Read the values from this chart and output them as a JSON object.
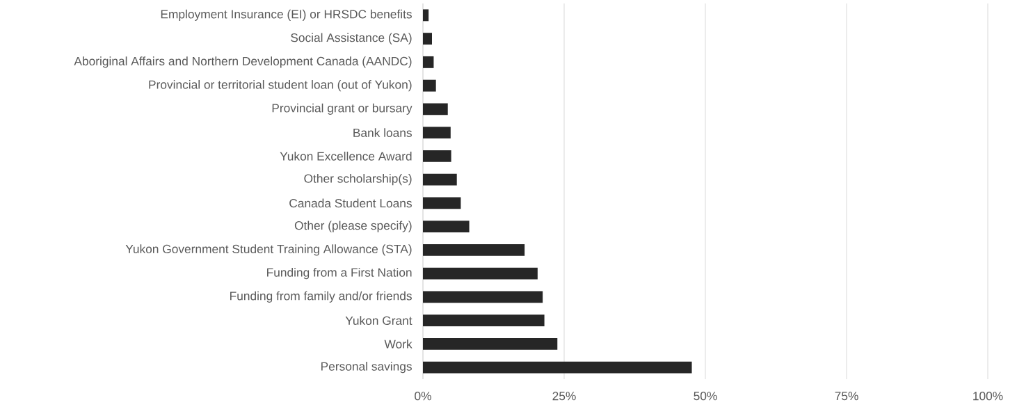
{
  "chart_data": {
    "type": "bar",
    "orientation": "horizontal",
    "categories": [
      "Employment Insurance (EI) or HRSDC benefits",
      "Social Assistance (SA)",
      "Aboriginal Affairs and Northern Development Canada (AANDC)",
      "Provincial or territorial student loan (out of Yukon)",
      "Provincial grant or bursary",
      "Bank loans",
      "Yukon Excellence Award",
      "Other scholarship(s)",
      "Canada Student Loans",
      "Other (please specify)",
      "Yukon Government Student Training Allowance (STA)",
      "Funding from a First Nation",
      "Funding from family and/or friends",
      "Yukon Grant",
      "Work",
      "Personal savings"
    ],
    "values": [
      1.0,
      1.6,
      1.9,
      2.3,
      4.4,
      4.9,
      5.0,
      6.0,
      6.7,
      8.2,
      18.0,
      20.3,
      21.2,
      21.5,
      23.8,
      47.6
    ],
    "color": "#262626",
    "xlim": [
      0,
      100
    ],
    "xticks": [
      {
        "value": 0,
        "label": "0%"
      },
      {
        "value": 25,
        "label": "25%"
      },
      {
        "value": 50,
        "label": "50%"
      },
      {
        "value": 75,
        "label": "75%"
      },
      {
        "value": 100,
        "label": "100%"
      }
    ],
    "grid": "x"
  }
}
